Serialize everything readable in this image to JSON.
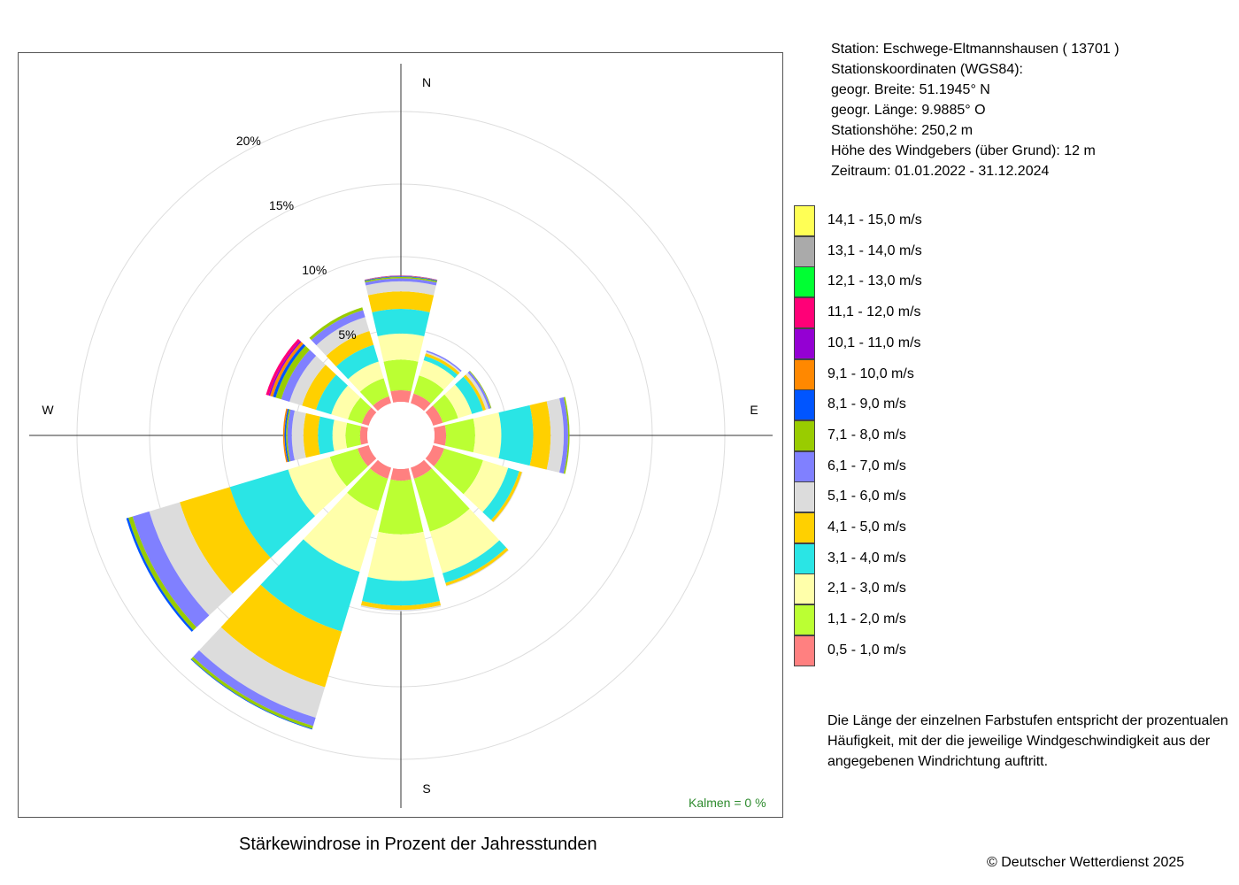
{
  "info": {
    "station": "Station:  Eschwege-Eltmannshausen  ( 13701 )",
    "coords_label": "Stationskoordinaten (WGS84):",
    "lat": "geogr. Breite: 51.1945° N",
    "lon": "geogr. Länge:   9.9885° O",
    "height": "Stationshöhe: 250,2 m",
    "sensor": "Höhe des Windgebers (über Grund): 12 m",
    "period": "Zeitraum: 01.01.2022 - 31.12.2024"
  },
  "note": "Die Länge der einzelnen Farbstufen entspricht der prozentualen Häufigkeit, mit der die jeweilige Windgeschwindigkeit aus der angegebenen Windrichtung auftritt.",
  "caption": "Stärkewindrose in Prozent der Jahresstunden",
  "copyright": "© Deutscher Wetterdienst  2025",
  "calm": "Kalmen  =  0 %",
  "compass": {
    "n": "N",
    "e": "E",
    "s": "S",
    "w": "W"
  },
  "chart_data": {
    "type": "wind rose (stacked polar bar)",
    "radial_unit": "%",
    "radial_ticks": [
      5,
      10,
      15,
      20
    ],
    "radial_tick_labels": [
      "5%",
      "10%",
      "15%",
      "20%"
    ],
    "direction_sectors": 12,
    "classes": [
      {
        "label": "0,5 - 1,0 m/s",
        "color": "#FF8080"
      },
      {
        "label": "1,1 - 2,0 m/s",
        "color": "#BBFF33"
      },
      {
        "label": "2,1 - 3,0 m/s",
        "color": "#FFFFAA"
      },
      {
        "label": "3,1 - 4,0 m/s",
        "color": "#2AE5E5"
      },
      {
        "label": "4,1 - 5,0 m/s",
        "color": "#FFD000"
      },
      {
        "label": "5,1 - 6,0 m/s",
        "color": "#DCDCDC"
      },
      {
        "label": "6,1 - 7,0 m/s",
        "color": "#8080FF"
      },
      {
        "label": "7,1 - 8,0 m/s",
        "color": "#99CC00"
      },
      {
        "label": "8,1 - 9,0 m/s",
        "color": "#0055FF"
      },
      {
        "label": "9,1 - 10,0 m/s",
        "color": "#FF8800"
      },
      {
        "label": "10,1 - 11,0 m/s",
        "color": "#9400D3"
      },
      {
        "label": "11,1 - 12,0 m/s",
        "color": "#FF0077"
      },
      {
        "label": "12,1 - 13,0 m/s",
        "color": "#00FF33"
      },
      {
        "label": "13,1 - 14,0 m/s",
        "color": "#AAAAAA"
      },
      {
        "label": "14,1 - 15,0 m/s",
        "color": "#FFFF55"
      }
    ],
    "sectors": [
      {
        "dir": 0,
        "values": [
          0.8,
          2.1,
          1.8,
          1.7,
          1.2,
          0.7,
          0.2,
          0.1,
          0.05,
          0.03,
          0.02
        ]
      },
      {
        "dir": 30,
        "values": [
          0.7,
          1.3,
          1.1,
          0.3,
          0.2,
          0.1,
          0.1
        ]
      },
      {
        "dir": 60,
        "values": [
          0.7,
          1.1,
          1.0,
          0.8,
          0.2,
          0.2,
          0.15,
          0.05
        ]
      },
      {
        "dir": 90,
        "values": [
          0.8,
          2.0,
          1.8,
          2.2,
          1.2,
          0.9,
          0.3,
          0.1
        ]
      },
      {
        "dir": 120,
        "values": [
          0.8,
          2.8,
          1.8,
          0.8,
          0.2,
          0.05
        ]
      },
      {
        "dir": 150,
        "values": [
          0.8,
          3.8,
          3.0,
          0.7,
          0.2,
          0.05
        ]
      },
      {
        "dir": 180,
        "values": [
          0.8,
          3.7,
          3.2,
          1.7,
          0.3,
          0.1
        ]
      },
      {
        "dir": 210,
        "values": [
          0.8,
          2.3,
          4.4,
          4.3,
          4.0,
          2.2,
          0.6,
          0.2,
          0.05
        ]
      },
      {
        "dir": 240,
        "values": [
          0.8,
          2.0,
          3.0,
          4.2,
          3.6,
          2.2,
          1.2,
          0.3,
          0.15
        ]
      },
      {
        "dir": 270,
        "values": [
          0.5,
          1.0,
          0.9,
          1.0,
          1.0,
          0.8,
          0.3,
          0.1,
          0.1,
          0.1
        ]
      },
      {
        "dir": 300,
        "values": [
          0.5,
          1.0,
          1.2,
          1.1,
          1.0,
          0.9,
          0.6,
          0.4,
          0.2,
          0.2,
          0.1,
          0.2
        ]
      },
      {
        "dir": 330,
        "values": [
          0.5,
          1.3,
          1.2,
          1.2,
          1.0,
          1.0,
          0.5,
          0.2
        ]
      }
    ]
  }
}
